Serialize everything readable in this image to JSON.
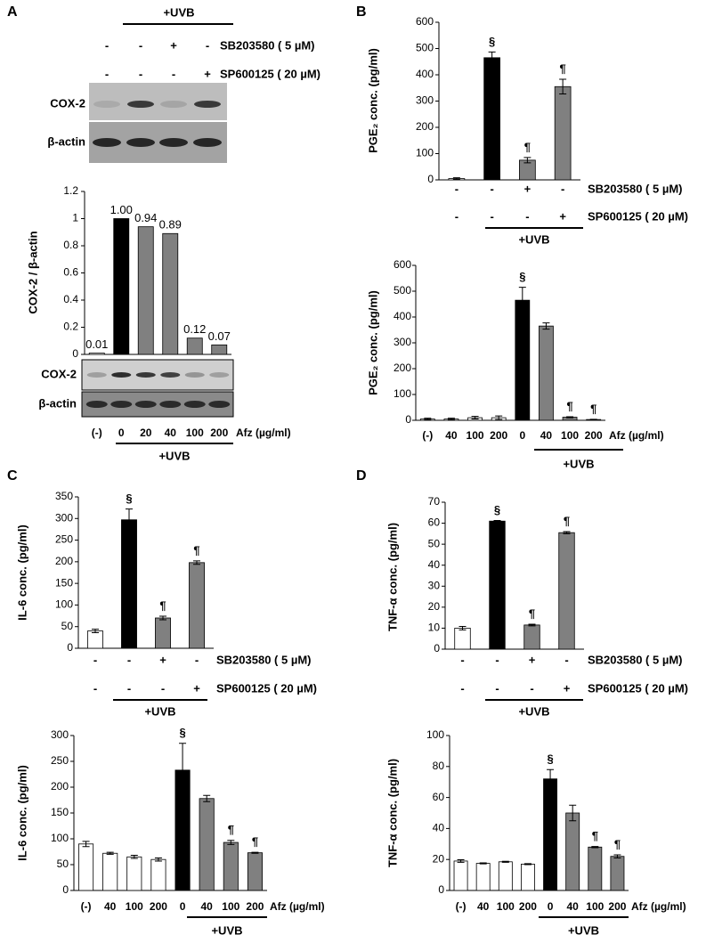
{
  "panels": [
    "A",
    "B",
    "C",
    "D"
  ],
  "blots": [
    {
      "labels": [
        "COX-2",
        "β-actin"
      ],
      "header": "+UVB",
      "treatments": [
        {
          "name": "SB203580 ( 5 µM)",
          "signs": [
            "-",
            "-",
            "+",
            "-"
          ]
        },
        {
          "name": "SP600125 ( 20 µM)",
          "signs": [
            "-",
            "-",
            "-",
            "+"
          ]
        }
      ]
    },
    {
      "labels": [
        "COX-2",
        "β-actin"
      ]
    }
  ],
  "chart_data": [
    {
      "type": "bar",
      "y_label": "COX-2 / β-actin",
      "x_label": "Afz (µg/ml)",
      "group_label": "+UVB",
      "categories": [
        "(-)",
        "0",
        "20",
        "40",
        "100",
        "200"
      ],
      "values": [
        0.01,
        1.0,
        0.94,
        0.89,
        0.12,
        0.07
      ],
      "value_labels": [
        "0.01",
        "1.00",
        "0.94",
        "0.89",
        "0.12",
        "0.07"
      ],
      "colors": [
        "#ffffff",
        "#000000",
        "#808080",
        "#808080",
        "#808080",
        "#808080"
      ],
      "ylim": [
        0,
        1.2
      ],
      "yticks": [
        0,
        0.2,
        0.4,
        0.6,
        0.8,
        1,
        1.2
      ]
    },
    {
      "type": "bar",
      "y_label": "PGE₂ conc. (pg/ml)",
      "group_label": "+UVB",
      "values": [
        5,
        465,
        75,
        355
      ],
      "errors": [
        3,
        22,
        10,
        28
      ],
      "annotations": [
        null,
        "§",
        "¶",
        "¶"
      ],
      "colors": [
        "#ffffff",
        "#000000",
        "#808080",
        "#808080"
      ],
      "treatments": [
        {
          "name": "SB203580 ( 5 µM)",
          "signs": [
            "-",
            "-",
            "+",
            "-"
          ]
        },
        {
          "name": "SP600125 ( 20 µM)",
          "signs": [
            "-",
            "-",
            "-",
            "+"
          ]
        }
      ],
      "ylim": [
        0,
        600
      ],
      "yticks": [
        0,
        100,
        200,
        300,
        400,
        500,
        600
      ]
    },
    {
      "type": "bar",
      "y_label": "PGE₂ conc. (pg/ml)",
      "x_label": "Afz (µg/ml)",
      "group_label": "+UVB",
      "categories": [
        "(-)",
        "40",
        "100",
        "200",
        "0",
        "40",
        "100",
        "200"
      ],
      "values": [
        5,
        5,
        10,
        10,
        465,
        365,
        12,
        3
      ],
      "errors": [
        3,
        3,
        5,
        7,
        50,
        12,
        2,
        1
      ],
      "annotations": [
        null,
        null,
        null,
        null,
        "§",
        null,
        "¶",
        "¶"
      ],
      "colors": [
        "#ffffff",
        "#ffffff",
        "#ffffff",
        "#ffffff",
        "#000000",
        "#808080",
        "#808080",
        "#808080"
      ],
      "ylim": [
        0,
        600
      ],
      "yticks": [
        0,
        100,
        200,
        300,
        400,
        500,
        600
      ]
    },
    {
      "type": "bar",
      "y_label": "IL-6 conc.  (pg/ml)",
      "group_label": "+UVB",
      "values": [
        40,
        297,
        70,
        198
      ],
      "errors": [
        4,
        25,
        4,
        4
      ],
      "annotations": [
        null,
        "§",
        "¶",
        "¶"
      ],
      "colors": [
        "#ffffff",
        "#000000",
        "#808080",
        "#808080"
      ],
      "treatments": [
        {
          "name": "SB203580 ( 5 µM)",
          "signs": [
            "-",
            "-",
            "+",
            "-"
          ]
        },
        {
          "name": "SP600125 ( 20 µM)",
          "signs": [
            "-",
            "-",
            "-",
            "+"
          ]
        }
      ],
      "ylim": [
        0,
        350
      ],
      "yticks": [
        0,
        50,
        100,
        150,
        200,
        250,
        300,
        350
      ]
    },
    {
      "type": "bar",
      "y_label": "TNF-α conc. (pg/ml)",
      "group_label": "+UVB",
      "values": [
        10,
        61,
        11.5,
        55.5
      ],
      "errors": [
        0.8,
        0.3,
        0.4,
        0.5
      ],
      "annotations": [
        null,
        "§",
        "¶",
        "¶"
      ],
      "colors": [
        "#ffffff",
        "#000000",
        "#808080",
        "#808080"
      ],
      "treatments": [
        {
          "name": "SB203580 ( 5 µM)",
          "signs": [
            "-",
            "-",
            "+",
            "-"
          ]
        },
        {
          "name": "SP600125 ( 20 µM)",
          "signs": [
            "-",
            "-",
            "-",
            "+"
          ]
        }
      ],
      "ylim": [
        0,
        70
      ],
      "yticks": [
        0,
        10,
        20,
        30,
        40,
        50,
        60,
        70
      ]
    },
    {
      "type": "bar",
      "y_label": "IL-6 conc.  (pg/ml)",
      "x_label": "Afz (µg/ml)",
      "group_label": "+UVB",
      "categories": [
        "(-)",
        "40",
        "100",
        "200",
        "0",
        "40",
        "100",
        "200"
      ],
      "values": [
        90,
        72,
        65,
        60,
        233,
        178,
        93,
        73
      ],
      "errors": [
        5,
        2,
        3,
        3,
        52,
        6,
        4,
        1
      ],
      "annotations": [
        null,
        null,
        null,
        null,
        "§",
        null,
        "¶",
        "¶"
      ],
      "colors": [
        "#ffffff",
        "#ffffff",
        "#ffffff",
        "#ffffff",
        "#000000",
        "#808080",
        "#808080",
        "#808080"
      ],
      "ylim": [
        0,
        300
      ],
      "yticks": [
        0,
        50,
        100,
        150,
        200,
        250,
        300
      ]
    },
    {
      "type": "bar",
      "y_label": "TNF-α conc. (pg/ml)",
      "x_label": "Afz (µg/ml)",
      "group_label": "+UVB",
      "categories": [
        "(-)",
        "40",
        "100",
        "200",
        "0",
        "40",
        "100",
        "200"
      ],
      "values": [
        19,
        17.5,
        18.5,
        17,
        72,
        50,
        28,
        22
      ],
      "errors": [
        0.8,
        0.3,
        0.3,
        0.3,
        6,
        5,
        0.4,
        1
      ],
      "annotations": [
        null,
        null,
        null,
        null,
        "§",
        null,
        "¶",
        "¶"
      ],
      "colors": [
        "#ffffff",
        "#ffffff",
        "#ffffff",
        "#ffffff",
        "#000000",
        "#808080",
        "#808080",
        "#808080"
      ],
      "ylim": [
        0,
        100
      ],
      "yticks": [
        0,
        20,
        40,
        60,
        80,
        100
      ]
    }
  ]
}
